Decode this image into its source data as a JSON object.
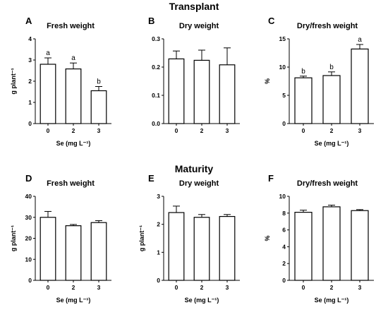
{
  "sections": [
    {
      "title": "Transplant"
    },
    {
      "title": "Maturity"
    }
  ],
  "chart_data": [
    {
      "type": "bar",
      "panel": "A",
      "title": "Fresh weight",
      "ylabel": "g plant⁻¹",
      "xlabel": "Se (mg L⁻¹)",
      "categories": [
        "0",
        "2",
        "3"
      ],
      "values": [
        2.8,
        2.58,
        1.55
      ],
      "errors": [
        0.3,
        0.28,
        0.2
      ],
      "letters": [
        "a",
        "a",
        "b"
      ],
      "ylim": [
        0,
        4
      ],
      "yticks": [
        "0",
        "1",
        "2",
        "3",
        "4"
      ]
    },
    {
      "type": "bar",
      "panel": "B",
      "title": "Dry weight",
      "ylabel": "",
      "xlabel": "",
      "categories": [
        "0",
        "2",
        "3"
      ],
      "values": [
        0.229,
        0.224,
        0.208
      ],
      "errors": [
        0.028,
        0.036,
        0.06
      ],
      "letters": [
        "",
        "",
        ""
      ],
      "ylim": [
        0,
        0.3
      ],
      "yticks": [
        "0.0",
        "0.1",
        "0.2",
        "0.3"
      ]
    },
    {
      "type": "bar",
      "panel": "C",
      "title": "Dry/fresh weight",
      "ylabel": "%",
      "xlabel": "Se (mg L⁻¹)",
      "categories": [
        "0",
        "2",
        "3"
      ],
      "values": [
        8.1,
        8.5,
        13.2
      ],
      "errors": [
        0.3,
        0.65,
        0.8
      ],
      "letters": [
        "b",
        "b",
        "a"
      ],
      "ylim": [
        0,
        15
      ],
      "yticks": [
        "0",
        "5",
        "10",
        "15"
      ]
    },
    {
      "type": "bar",
      "panel": "D",
      "title": "Fresh weight",
      "ylabel": "g plant⁻¹",
      "xlabel": "Se (mg L⁻¹)",
      "categories": [
        "0",
        "2",
        "3"
      ],
      "values": [
        30,
        26,
        27.5
      ],
      "errors": [
        2.8,
        0.6,
        0.9
      ],
      "letters": [
        "",
        "",
        ""
      ],
      "ylim": [
        0,
        40
      ],
      "yticks": [
        "0",
        "10",
        "20",
        "30",
        "40"
      ]
    },
    {
      "type": "bar",
      "panel": "E",
      "title": "Dry weight",
      "ylabel": "g plant⁻¹",
      "xlabel": "Se (mg L⁻¹)",
      "categories": [
        "0",
        "2",
        "3"
      ],
      "values": [
        2.42,
        2.25,
        2.28
      ],
      "errors": [
        0.23,
        0.1,
        0.07
      ],
      "letters": [
        "",
        "",
        ""
      ],
      "ylim": [
        0,
        3
      ],
      "yticks": [
        "0",
        "1",
        "2",
        "3"
      ]
    },
    {
      "type": "bar",
      "panel": "F",
      "title": "Dry/fresh weight",
      "ylabel": "%",
      "xlabel": "Se (mg L⁻¹)",
      "categories": [
        "0",
        "2",
        "3"
      ],
      "values": [
        8.1,
        8.75,
        8.3
      ],
      "errors": [
        0.25,
        0.2,
        0.12
      ],
      "letters": [
        "",
        "",
        ""
      ],
      "ylim": [
        0,
        10
      ],
      "yticks": [
        "0",
        "2",
        "4",
        "6",
        "8",
        "10"
      ]
    }
  ]
}
